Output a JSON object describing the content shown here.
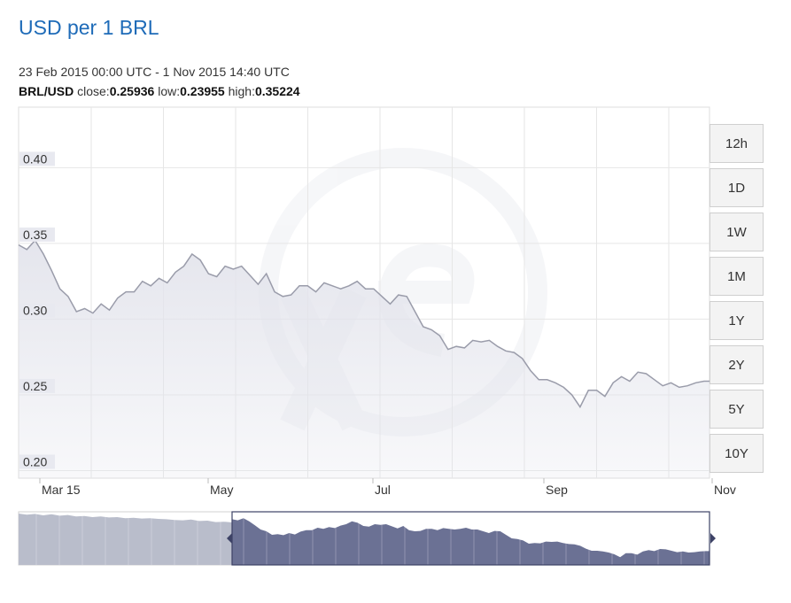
{
  "header": {
    "title": "USD per 1 BRL",
    "date_range": "23 Feb 2015 00:00 UTC - 1 Nov 2015 14:40 UTC",
    "pair": "BRL/USD",
    "close_label": "close:",
    "close_value": "0.25936",
    "low_label": "low:",
    "low_value": "0.23955",
    "high_label": "high:",
    "high_value": "0.35224"
  },
  "range_buttons": [
    "12h",
    "1D",
    "1W",
    "1M",
    "1Y",
    "2Y",
    "5Y",
    "10Y"
  ],
  "colors": {
    "title": "#1e6bb8",
    "line": "#9a9caa",
    "area": "#e3e4ec",
    "navigator_selected": "#6b7194",
    "navigator_unselected": "#b9bdcb"
  },
  "chart_data": {
    "type": "area",
    "title": "",
    "xlabel": "",
    "ylabel": "",
    "x_ticks": [
      "Mar 15",
      "May",
      "Jul",
      "Sep",
      "Nov"
    ],
    "y_ticks": [
      "0.20",
      "0.25",
      "0.30",
      "0.35",
      "0.40"
    ],
    "ylim": [
      0.195,
      0.44
    ],
    "xlim": [
      "2015-02-23",
      "2015-11-01"
    ],
    "grid": true,
    "series": [
      {
        "x": [
          "2015-02-23",
          "2015-02-26",
          "2015-03-01",
          "2015-03-04",
          "2015-03-07",
          "2015-03-10",
          "2015-03-13",
          "2015-03-16",
          "2015-03-19",
          "2015-03-22",
          "2015-03-25",
          "2015-03-28",
          "2015-03-31",
          "2015-04-03",
          "2015-04-06",
          "2015-04-09",
          "2015-04-12",
          "2015-04-15",
          "2015-04-18",
          "2015-04-21",
          "2015-04-24",
          "2015-04-27",
          "2015-04-30",
          "2015-05-03",
          "2015-05-06",
          "2015-05-09",
          "2015-05-12",
          "2015-05-15",
          "2015-05-18",
          "2015-05-21",
          "2015-05-24",
          "2015-05-27",
          "2015-05-30",
          "2015-06-02",
          "2015-06-05",
          "2015-06-08",
          "2015-06-11",
          "2015-06-14",
          "2015-06-17",
          "2015-06-20",
          "2015-06-23",
          "2015-06-26",
          "2015-06-29",
          "2015-07-02",
          "2015-07-05",
          "2015-07-08",
          "2015-07-11",
          "2015-07-14",
          "2015-07-17",
          "2015-07-20",
          "2015-07-23",
          "2015-07-26",
          "2015-07-29",
          "2015-08-01",
          "2015-08-04",
          "2015-08-07",
          "2015-08-10",
          "2015-08-13",
          "2015-08-16",
          "2015-08-19",
          "2015-08-22",
          "2015-08-25",
          "2015-08-28",
          "2015-08-31",
          "2015-09-03",
          "2015-09-06",
          "2015-09-09",
          "2015-09-12",
          "2015-09-15",
          "2015-09-18",
          "2015-09-21",
          "2015-09-24",
          "2015-09-27",
          "2015-09-30",
          "2015-10-03",
          "2015-10-06",
          "2015-10-09",
          "2015-10-12",
          "2015-10-15",
          "2015-10-18",
          "2015-10-21",
          "2015-10-24",
          "2015-10-27",
          "2015-10-30",
          "2015-11-01"
        ],
        "values": [
          0.349,
          0.346,
          0.352,
          0.343,
          0.332,
          0.32,
          0.315,
          0.305,
          0.307,
          0.304,
          0.31,
          0.306,
          0.314,
          0.318,
          0.318,
          0.325,
          0.322,
          0.327,
          0.324,
          0.331,
          0.335,
          0.343,
          0.339,
          0.33,
          0.328,
          0.335,
          0.333,
          0.335,
          0.329,
          0.323,
          0.33,
          0.318,
          0.315,
          0.316,
          0.322,
          0.322,
          0.318,
          0.324,
          0.322,
          0.32,
          0.322,
          0.325,
          0.32,
          0.32,
          0.315,
          0.31,
          0.316,
          0.315,
          0.305,
          0.295,
          0.293,
          0.289,
          0.28,
          0.282,
          0.281,
          0.286,
          0.285,
          0.286,
          0.282,
          0.279,
          0.278,
          0.274,
          0.266,
          0.26,
          0.26,
          0.258,
          0.255,
          0.25,
          0.242,
          0.253,
          0.253,
          0.249,
          0.258,
          0.262,
          0.259,
          0.265,
          0.264,
          0.26,
          0.256,
          0.258,
          0.255,
          0.256,
          0.258,
          0.259,
          0.259
        ]
      }
    ],
    "navigator": {
      "selection_start": "2015-02-23",
      "selection_end": "2015-11-01"
    }
  }
}
